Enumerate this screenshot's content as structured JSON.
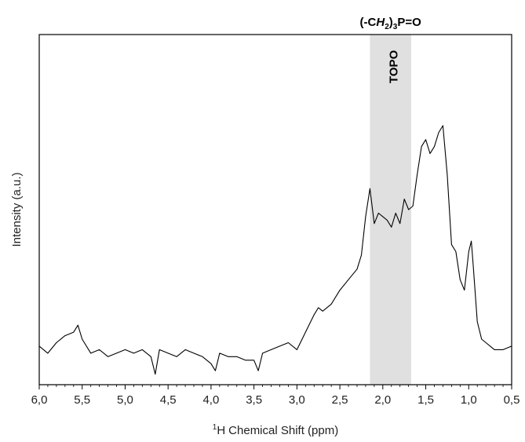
{
  "chart_data": {
    "type": "line",
    "title": "",
    "xlabel": "Chemical Shift (ppm)",
    "xlabel_prefix_superscript": "1",
    "xlabel_prefix": "H",
    "ylabel": "Intensity (a.u.)",
    "x_reversed": true,
    "xlim": [
      6.0,
      0.5
    ],
    "ylim": [
      0,
      100
    ],
    "y_ticks_shown": false,
    "grid": false,
    "x_ticks": [
      6.0,
      5.5,
      5.0,
      4.5,
      4.0,
      3.5,
      3.0,
      2.5,
      2.0,
      1.5,
      1.0,
      0.5
    ],
    "x_tick_labels": [
      "6,0",
      "5,5",
      "5,0",
      "4,5",
      "4,0",
      "3,5",
      "3,0",
      "2,5",
      "2,0",
      "1,5",
      "1,0",
      "0,5"
    ],
    "highlight_band": {
      "from": 2.15,
      "to": 1.67,
      "color": "#e0e0e0",
      "label": "TOPO"
    },
    "top_annotation": {
      "open": "(-C",
      "italic": "H",
      "sub1": "2",
      "close": ")",
      "sub2": "3",
      "rest": "P=O"
    },
    "series": [
      {
        "color": "#000000",
        "x": [
          6.0,
          5.9,
          5.8,
          5.7,
          5.6,
          5.55,
          5.5,
          5.4,
          5.3,
          5.2,
          5.1,
          5.0,
          4.9,
          4.8,
          4.7,
          4.65,
          4.6,
          4.5,
          4.4,
          4.3,
          4.2,
          4.1,
          4.0,
          3.95,
          3.9,
          3.8,
          3.7,
          3.6,
          3.5,
          3.45,
          3.4,
          3.3,
          3.2,
          3.1,
          3.0,
          2.9,
          2.8,
          2.75,
          2.7,
          2.6,
          2.5,
          2.4,
          2.3,
          2.25,
          2.2,
          2.15,
          2.1,
          2.05,
          2.0,
          1.95,
          1.9,
          1.85,
          1.8,
          1.75,
          1.7,
          1.65,
          1.6,
          1.55,
          1.5,
          1.45,
          1.4,
          1.35,
          1.3,
          1.25,
          1.2,
          1.15,
          1.1,
          1.05,
          1.0,
          0.97,
          0.95,
          0.9,
          0.85,
          0.8,
          0.75,
          0.7,
          0.6,
          0.5
        ],
        "y": [
          11,
          9,
          12,
          14,
          15,
          17,
          13,
          9,
          10,
          8,
          9,
          10,
          9,
          10,
          8,
          3,
          10,
          9,
          8,
          10,
          9,
          8,
          6,
          4,
          9,
          8,
          8,
          7,
          7,
          4,
          9,
          10,
          11,
          12,
          10,
          15,
          20,
          22,
          21,
          23,
          27,
          30,
          33,
          37,
          48,
          56,
          46,
          49,
          48,
          47,
          45,
          49,
          46,
          53,
          50,
          51,
          60,
          68,
          70,
          66,
          68,
          72,
          74,
          60,
          40,
          38,
          30,
          27,
          38,
          41,
          35,
          18,
          13,
          12,
          11,
          10,
          10,
          11
        ]
      }
    ]
  }
}
